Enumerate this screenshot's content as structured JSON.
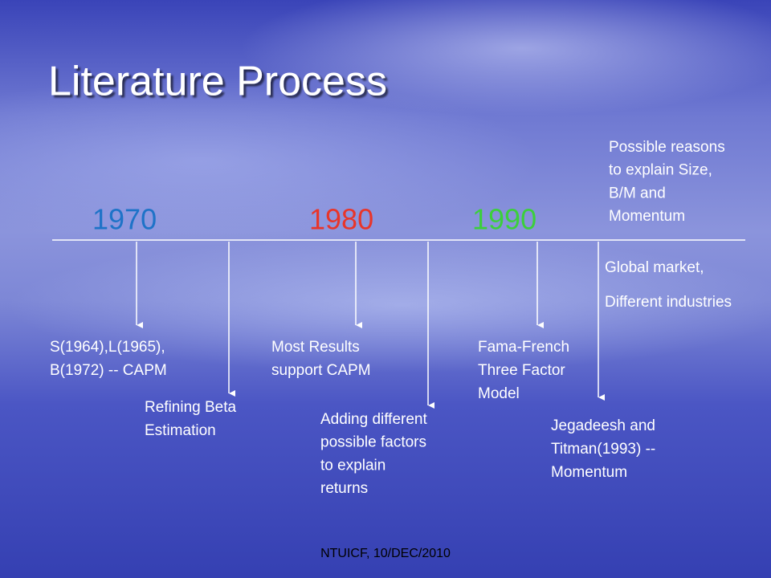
{
  "title": "Literature Process",
  "years": [
    "1970",
    "1980",
    "1990"
  ],
  "notes": [
    {
      "lines": [
        "S(1964),L(1965),",
        "B(1972) -- CAPM"
      ]
    },
    {
      "lines": [
        "Refining Beta",
        "Estimation"
      ]
    },
    {
      "lines": [
        "Most Results",
        "support CAPM"
      ]
    },
    {
      "lines": [
        "Adding different",
        "possible factors",
        "to explain",
        "returns"
      ]
    },
    {
      "lines": [
        "Fama-French",
        "Three Factor",
        "Model"
      ]
    },
    {
      "lines": [
        "Jegadeesh and",
        "Titman(1993) --",
        "Momentum"
      ]
    },
    {
      "lines": [
        "Global market,",
        "Different industries"
      ]
    },
    {
      "lines": [
        "Possible reasons",
        "to explain Size,",
        "B/M and",
        "Momentum"
      ]
    }
  ],
  "footer": "NTUICF, 10/DEC/2010"
}
